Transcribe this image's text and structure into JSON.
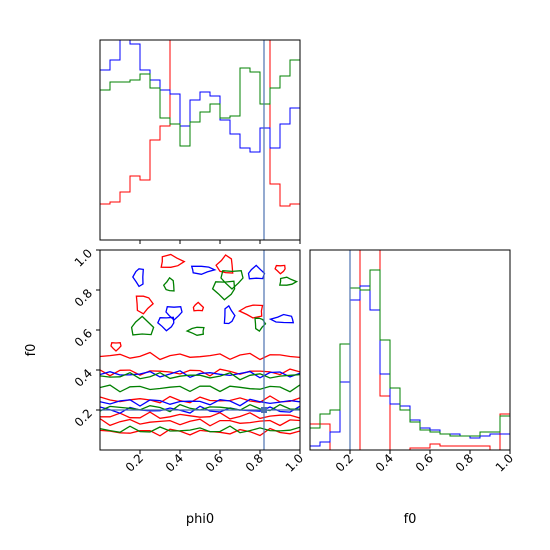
{
  "chart_data": [
    {
      "type": "histogram",
      "panel": "phi0 marginal",
      "x_range": [
        0,
        1
      ],
      "bins": 20,
      "y_range_normalized": [
        0,
        1
      ],
      "x_ticks": [
        0.2,
        0.4,
        0.6,
        0.8,
        1.0
      ],
      "x_tick_labels_shown": false,
      "y_ticks_shown": false,
      "truth_line_x": 0.82,
      "truth_line_color": "#4c72b0",
      "series": [
        {
          "color": "#ff0000",
          "heights": [
            0.18,
            0.19,
            0.24,
            0.32,
            0.3,
            0.5,
            0.57,
            1.05,
            1.05,
            1.05,
            1.05,
            1.05,
            1.05,
            1.05,
            1.05,
            1.05,
            1.05,
            0.28,
            0.17,
            0.18
          ]
        },
        {
          "color": "#0000ff",
          "heights": [
            0.85,
            0.9,
            1.05,
            0.98,
            0.85,
            0.8,
            0.75,
            0.73,
            0.57,
            0.7,
            0.74,
            0.72,
            0.6,
            0.53,
            0.46,
            0.44,
            0.56,
            0.46,
            0.58,
            0.66
          ]
        },
        {
          "color": "#008000",
          "heights": [
            0.75,
            0.79,
            0.79,
            0.8,
            0.83,
            0.76,
            0.61,
            0.58,
            0.47,
            0.59,
            0.64,
            0.68,
            0.61,
            0.62,
            0.86,
            0.84,
            0.68,
            0.76,
            0.82,
            0.9
          ]
        }
      ]
    },
    {
      "type": "contour",
      "panel": "phi0 vs f0 joint",
      "x_range": [
        0,
        1
      ],
      "y_range": [
        0,
        1
      ],
      "xlabel": "phi0",
      "ylabel": "f0",
      "x_ticks": [
        "0.2",
        "0.4",
        "0.6",
        "0.8",
        "1.0"
      ],
      "y_ticks": [
        "0.2",
        "0.4",
        "0.6",
        "0.8",
        "1.0"
      ],
      "truth_x": 0.82,
      "truth_y": 0.2,
      "truth_color": "#4c72b0",
      "series": [
        {
          "color": "#ff0000",
          "level_y": [
            0.09,
            0.14,
            0.17,
            0.25,
            0.39,
            0.47
          ]
        },
        {
          "color": "#0000ff",
          "level_y": [
            0.2,
            0.24,
            0.38
          ]
        },
        {
          "color": "#008000",
          "level_y": [
            0.1,
            0.21,
            0.31,
            0.37
          ]
        }
      ]
    },
    {
      "type": "histogram",
      "panel": "f0 marginal",
      "x_range": [
        0,
        1
      ],
      "bins": 20,
      "y_range_normalized": [
        0,
        1
      ],
      "xlabel": "f0",
      "x_ticks": [
        "0.2",
        "0.4",
        "0.6",
        "0.8",
        "1.0"
      ],
      "y_ticks_shown": false,
      "truth_line_x": 0.2,
      "truth_line_color": "#4c72b0",
      "series": [
        {
          "color": "#ff0000",
          "heights": [
            0.13,
            0.13,
            0.0,
            0.0,
            0.0,
            1.05,
            1.05,
            0.27,
            0.0,
            0.0,
            0.01,
            0.01,
            0.03,
            0.02,
            0.02,
            0.02,
            0.02,
            0.02,
            0.0,
            0.18
          ]
        },
        {
          "color": "#0000ff",
          "heights": [
            0.02,
            0.04,
            0.09,
            0.34,
            0.75,
            0.82,
            0.7,
            0.38,
            0.23,
            0.22,
            0.15,
            0.11,
            0.1,
            0.08,
            0.08,
            0.07,
            0.06,
            0.07,
            0.08,
            0.08
          ]
        },
        {
          "color": "#008000",
          "heights": [
            0.11,
            0.18,
            0.2,
            0.53,
            0.81,
            0.8,
            0.9,
            0.55,
            0.31,
            0.2,
            0.14,
            0.1,
            0.09,
            0.08,
            0.07,
            0.07,
            0.07,
            0.09,
            0.09,
            0.17
          ]
        }
      ]
    }
  ]
}
